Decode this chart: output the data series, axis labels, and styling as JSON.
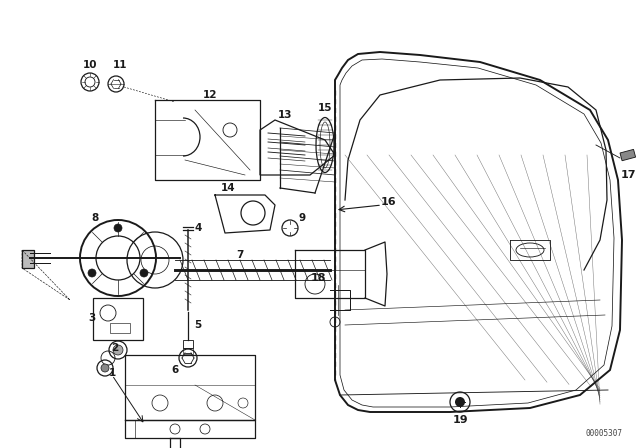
{
  "bg_color": "#ffffff",
  "diagram_color": "#1a1a1a",
  "watermark": "00005307",
  "fig_width": 6.4,
  "fig_height": 4.48,
  "dpi": 100
}
